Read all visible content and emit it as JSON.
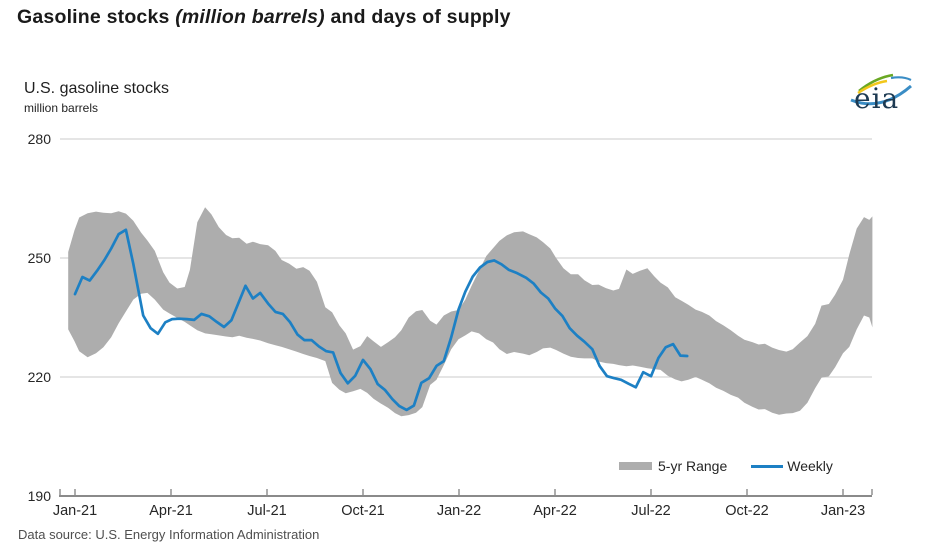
{
  "page_title": {
    "prefix": "Gasoline stocks ",
    "italic": "(million barrels)",
    "suffix": " and days of supply"
  },
  "chart_header": {
    "title": "U.S. gasoline stocks",
    "units": "million barrels"
  },
  "logo": {
    "text": "eia"
  },
  "legend": {
    "band_label": "5-yr Range",
    "line_label": "Weekly"
  },
  "footer": {
    "source": "Data source: U.S. Energy Information Administration"
  },
  "colors": {
    "band": "#adadad",
    "weekly_line": "#1d80c4",
    "gridline": "#cbcbcb",
    "axis": "#8a8a8a",
    "tick_text": "#262626",
    "logo_text": "#1d3a52",
    "logo_green": "#6aa823",
    "logo_yellow": "#f2c71b",
    "logo_blue": "#3a8dc5"
  },
  "chart_data": {
    "type": "line",
    "title": "U.S. gasoline stocks",
    "ylabel": "million barrels",
    "ylim": [
      190,
      280
    ],
    "y_ticks": [
      280,
      250,
      220,
      190
    ],
    "x_ticks": [
      {
        "label": "Jan-21",
        "date": "2021-01-01"
      },
      {
        "label": "Apr-21",
        "date": "2021-04-01"
      },
      {
        "label": "Jul-21",
        "date": "2021-07-01"
      },
      {
        "label": "Oct-21",
        "date": "2021-10-01"
      },
      {
        "label": "Jan-22",
        "date": "2022-01-01"
      },
      {
        "label": "Apr-22",
        "date": "2022-04-01"
      },
      {
        "label": "Jul-22",
        "date": "2022-07-01"
      },
      {
        "label": "Oct-22",
        "date": "2022-10-01"
      },
      {
        "label": "Jan-23",
        "date": "2023-01-01"
      }
    ],
    "grid": "horizontal",
    "legend_position": "bottom-right-inside",
    "series": [
      {
        "name": "5-yr Range",
        "type": "band",
        "color": "#adadad",
        "points_format": [
          "date",
          "min",
          "max"
        ],
        "points": [
          [
            "2020-12-25",
            232.0,
            251.5
          ],
          [
            "2020-12-31",
            229.0,
            257.0
          ],
          [
            "2021-01-05",
            226.5,
            260.2
          ],
          [
            "2021-01-13",
            225.0,
            261.3
          ],
          [
            "2021-01-21",
            226.0,
            261.7
          ],
          [
            "2021-01-28",
            227.5,
            261.4
          ],
          [
            "2021-02-05",
            230.0,
            261.3
          ],
          [
            "2021-02-12",
            233.5,
            261.8
          ],
          [
            "2021-02-19",
            236.5,
            261.2
          ],
          [
            "2021-02-26",
            239.5,
            259.4
          ],
          [
            "2021-03-03",
            241.0,
            256.4
          ],
          [
            "2021-03-09",
            241.2,
            254.4
          ],
          [
            "2021-03-16",
            239.5,
            251.8
          ],
          [
            "2021-03-24",
            237.0,
            246.4
          ],
          [
            "2021-03-30",
            236.0,
            243.8
          ],
          [
            "2021-04-07",
            234.9,
            242.3
          ],
          [
            "2021-04-14",
            233.9,
            242.7
          ],
          [
            "2021-04-19",
            233.0,
            247.0
          ],
          [
            "2021-04-26",
            231.8,
            259.0
          ],
          [
            "2021-05-03",
            231.0,
            262.8
          ],
          [
            "2021-05-09",
            230.8,
            261.0
          ],
          [
            "2021-05-16",
            230.5,
            257.8
          ],
          [
            "2021-05-23",
            230.2,
            255.8
          ],
          [
            "2021-05-29",
            230.0,
            255.0
          ],
          [
            "2021-06-05",
            230.4,
            255.1
          ],
          [
            "2021-06-12",
            229.9,
            253.6
          ],
          [
            "2021-06-18",
            229.6,
            254.1
          ],
          [
            "2021-06-25",
            229.2,
            253.5
          ],
          [
            "2021-07-02",
            228.5,
            253.2
          ],
          [
            "2021-07-09",
            228.0,
            251.8
          ],
          [
            "2021-07-15",
            227.6,
            249.5
          ],
          [
            "2021-07-22",
            227.0,
            248.6
          ],
          [
            "2021-07-29",
            226.4,
            247.3
          ],
          [
            "2021-08-05",
            225.8,
            247.7
          ],
          [
            "2021-08-11",
            225.3,
            246.8
          ],
          [
            "2021-08-18",
            224.8,
            244.0
          ],
          [
            "2021-08-26",
            224.0,
            237.6
          ],
          [
            "2021-09-02",
            218.5,
            236.3
          ],
          [
            "2021-09-09",
            216.8,
            233.0
          ],
          [
            "2021-09-15",
            215.9,
            231.0
          ],
          [
            "2021-09-22",
            216.4,
            226.9
          ],
          [
            "2021-09-29",
            217.0,
            227.8
          ],
          [
            "2021-10-05",
            216.0,
            230.3
          ],
          [
            "2021-10-11",
            214.5,
            229.0
          ],
          [
            "2021-10-18",
            213.3,
            227.6
          ],
          [
            "2021-10-25",
            212.2,
            228.8
          ],
          [
            "2021-11-01",
            210.9,
            230.0
          ],
          [
            "2021-11-07",
            210.1,
            231.8
          ],
          [
            "2021-11-14",
            210.4,
            235.0
          ],
          [
            "2021-11-21",
            211.0,
            236.6
          ],
          [
            "2021-11-27",
            212.4,
            236.9
          ],
          [
            "2021-12-04",
            218.0,
            234.2
          ],
          [
            "2021-12-10",
            219.3,
            233.2
          ],
          [
            "2021-12-17",
            223.0,
            235.5
          ],
          [
            "2021-12-24",
            227.0,
            236.5
          ],
          [
            "2021-12-31",
            229.5,
            236.9
          ],
          [
            "2022-01-07",
            230.5,
            239.5
          ],
          [
            "2022-01-13",
            231.5,
            243.0
          ],
          [
            "2022-01-20",
            231.0,
            246.8
          ],
          [
            "2022-01-27",
            229.5,
            250.5
          ],
          [
            "2022-02-03",
            228.7,
            252.5
          ],
          [
            "2022-02-09",
            227.0,
            254.3
          ],
          [
            "2022-02-16",
            225.8,
            255.7
          ],
          [
            "2022-02-23",
            226.3,
            256.5
          ],
          [
            "2022-03-01",
            225.9,
            256.7
          ],
          [
            "2022-03-07",
            225.5,
            256.0
          ],
          [
            "2022-03-14",
            226.3,
            255.2
          ],
          [
            "2022-03-20",
            227.2,
            254.0
          ],
          [
            "2022-03-27",
            227.4,
            252.4
          ],
          [
            "2022-04-02",
            226.8,
            250.0
          ],
          [
            "2022-04-09",
            225.9,
            247.4
          ],
          [
            "2022-04-16",
            225.1,
            245.9
          ],
          [
            "2022-04-23",
            224.8,
            245.9
          ],
          [
            "2022-04-29",
            224.7,
            244.4
          ],
          [
            "2022-05-06",
            224.7,
            243.2
          ],
          [
            "2022-05-12",
            223.9,
            243.3
          ],
          [
            "2022-05-19",
            223.5,
            242.4
          ],
          [
            "2022-05-26",
            223.3,
            241.8
          ],
          [
            "2022-06-01",
            223.0,
            242.2
          ],
          [
            "2022-06-08",
            222.7,
            247.1
          ],
          [
            "2022-06-14",
            222.9,
            246.0
          ],
          [
            "2022-06-21",
            222.6,
            246.8
          ],
          [
            "2022-06-28",
            222.2,
            247.4
          ],
          [
            "2022-07-04",
            222.0,
            245.4
          ],
          [
            "2022-07-10",
            221.8,
            243.8
          ],
          [
            "2022-07-17",
            220.3,
            242.6
          ],
          [
            "2022-07-24",
            219.4,
            240.1
          ],
          [
            "2022-07-30",
            218.9,
            239.2
          ],
          [
            "2022-08-06",
            219.3,
            238.2
          ],
          [
            "2022-08-13",
            220.0,
            237.0
          ],
          [
            "2022-08-19",
            219.3,
            236.4
          ],
          [
            "2022-08-26",
            218.4,
            235.5
          ],
          [
            "2022-09-02",
            217.3,
            234.1
          ],
          [
            "2022-09-09",
            216.5,
            233.0
          ],
          [
            "2022-09-16",
            215.5,
            231.8
          ],
          [
            "2022-09-23",
            214.8,
            230.4
          ],
          [
            "2022-09-29",
            213.5,
            229.4
          ],
          [
            "2022-10-06",
            212.5,
            228.8
          ],
          [
            "2022-10-12",
            211.8,
            228.2
          ],
          [
            "2022-10-18",
            211.9,
            228.4
          ],
          [
            "2022-10-25",
            211.0,
            227.4
          ],
          [
            "2022-11-01",
            210.5,
            226.8
          ],
          [
            "2022-11-08",
            210.8,
            226.4
          ],
          [
            "2022-11-14",
            210.9,
            227.0
          ],
          [
            "2022-11-21",
            211.5,
            228.7
          ],
          [
            "2022-11-28",
            213.5,
            230.3
          ],
          [
            "2022-12-05",
            217.2,
            233.4
          ],
          [
            "2022-12-11",
            219.8,
            238.0
          ],
          [
            "2022-12-18",
            220.2,
            238.4
          ],
          [
            "2022-12-24",
            222.5,
            240.8
          ],
          [
            "2023-01-01",
            226.0,
            244.5
          ],
          [
            "2023-01-07",
            227.6,
            250.9
          ],
          [
            "2023-01-14",
            232.0,
            257.4
          ],
          [
            "2023-01-21",
            235.5,
            260.3
          ],
          [
            "2023-01-26",
            235.0,
            259.6
          ],
          [
            "2023-01-29",
            232.5,
            260.5
          ]
        ]
      },
      {
        "name": "Weekly",
        "type": "line",
        "color": "#1d80c4",
        "points_format": [
          "date",
          "value"
        ],
        "points": [
          [
            "2021-01-01",
            240.9
          ],
          [
            "2021-01-08",
            245.2
          ],
          [
            "2021-01-15",
            244.3
          ],
          [
            "2021-01-22",
            246.8
          ],
          [
            "2021-01-29",
            249.5
          ],
          [
            "2021-02-05",
            252.4
          ],
          [
            "2021-02-12",
            256.0
          ],
          [
            "2021-02-19",
            257.1
          ],
          [
            "2021-02-26",
            248.5
          ],
          [
            "2021-03-05",
            235.5
          ],
          [
            "2021-03-12",
            232.3
          ],
          [
            "2021-03-19",
            230.9
          ],
          [
            "2021-03-26",
            233.8
          ],
          [
            "2021-04-02",
            234.6
          ],
          [
            "2021-04-09",
            234.7
          ],
          [
            "2021-04-16",
            234.6
          ],
          [
            "2021-04-23",
            234.4
          ],
          [
            "2021-04-30",
            235.9
          ],
          [
            "2021-05-07",
            235.3
          ],
          [
            "2021-05-14",
            233.9
          ],
          [
            "2021-05-21",
            232.6
          ],
          [
            "2021-05-28",
            234.3
          ],
          [
            "2021-06-04",
            238.5
          ],
          [
            "2021-06-11",
            243.0
          ],
          [
            "2021-06-18",
            239.8
          ],
          [
            "2021-06-25",
            241.2
          ],
          [
            "2021-07-02",
            238.5
          ],
          [
            "2021-07-09",
            236.4
          ],
          [
            "2021-07-16",
            235.9
          ],
          [
            "2021-07-23",
            233.8
          ],
          [
            "2021-07-30",
            230.7
          ],
          [
            "2021-08-06",
            229.3
          ],
          [
            "2021-08-13",
            229.3
          ],
          [
            "2021-08-20",
            227.7
          ],
          [
            "2021-08-27",
            226.5
          ],
          [
            "2021-09-03",
            226.2
          ],
          [
            "2021-09-10",
            221.0
          ],
          [
            "2021-09-17",
            218.4
          ],
          [
            "2021-09-24",
            220.3
          ],
          [
            "2021-10-01",
            224.3
          ],
          [
            "2021-10-08",
            222.0
          ],
          [
            "2021-10-15",
            218.2
          ],
          [
            "2021-10-22",
            216.7
          ],
          [
            "2021-10-29",
            214.4
          ],
          [
            "2021-11-05",
            212.7
          ],
          [
            "2021-11-12",
            211.7
          ],
          [
            "2021-11-19",
            212.8
          ],
          [
            "2021-11-26",
            218.5
          ],
          [
            "2021-12-03",
            219.7
          ],
          [
            "2021-12-10",
            222.8
          ],
          [
            "2021-12-17",
            224.0
          ],
          [
            "2021-12-24",
            230.0
          ],
          [
            "2021-12-31",
            237.0
          ],
          [
            "2022-01-07",
            241.5
          ],
          [
            "2022-01-14",
            245.3
          ],
          [
            "2022-01-21",
            247.6
          ],
          [
            "2022-01-28",
            249.0
          ],
          [
            "2022-02-04",
            249.4
          ],
          [
            "2022-02-11",
            248.4
          ],
          [
            "2022-02-18",
            247.0
          ],
          [
            "2022-02-25",
            246.3
          ],
          [
            "2022-03-04",
            245.0
          ],
          [
            "2022-03-11",
            243.6
          ],
          [
            "2022-03-18",
            241.3
          ],
          [
            "2022-03-25",
            239.8
          ],
          [
            "2022-04-01",
            237.3
          ],
          [
            "2022-04-08",
            235.4
          ],
          [
            "2022-04-15",
            232.3
          ],
          [
            "2022-04-22",
            230.4
          ],
          [
            "2022-04-29",
            228.9
          ],
          [
            "2022-05-06",
            227.0
          ],
          [
            "2022-05-13",
            222.8
          ],
          [
            "2022-05-20",
            220.2
          ],
          [
            "2022-05-27",
            219.7
          ],
          [
            "2022-06-03",
            219.3
          ],
          [
            "2022-06-10",
            218.3
          ],
          [
            "2022-06-17",
            217.4
          ],
          [
            "2022-06-24",
            221.2
          ],
          [
            "2022-07-01",
            220.2
          ],
          [
            "2022-07-08",
            224.8
          ],
          [
            "2022-07-15",
            227.5
          ],
          [
            "2022-07-22",
            228.3
          ],
          [
            "2022-07-29",
            225.4
          ],
          [
            "2022-08-05",
            225.3
          ]
        ]
      }
    ]
  }
}
